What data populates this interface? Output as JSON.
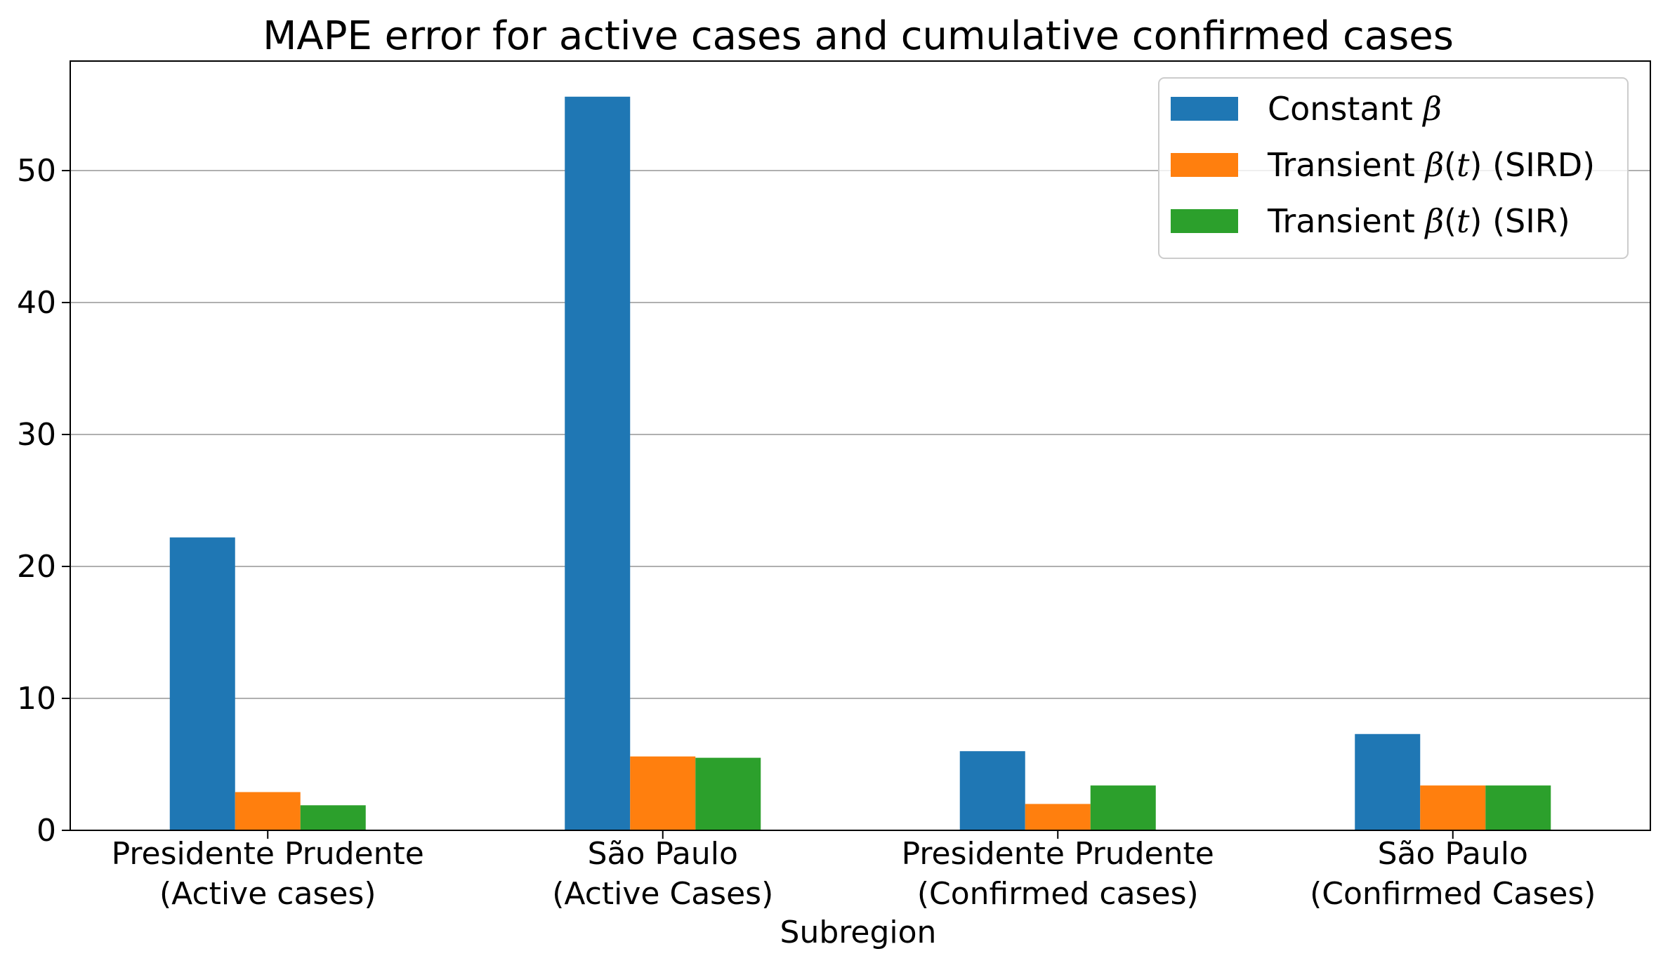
{
  "chart_data": {
    "type": "bar",
    "title": "MAPE error for active cases and cumulative confirmed cases",
    "xlabel": "Subregion",
    "ylabel": "",
    "ylim": [
      0,
      58.3
    ],
    "yticks": [
      0,
      10,
      20,
      30,
      40,
      50
    ],
    "grid": "horizontal",
    "legend_position": "top-right",
    "categories": [
      [
        "Presidente Prudente",
        "(Active cases)"
      ],
      [
        "São Paulo",
        "(Active Cases)"
      ],
      [
        "Presidente Prudente",
        "(Confirmed cases)"
      ],
      [
        "São Paulo",
        "(Confirmed Cases)"
      ]
    ],
    "series": [
      {
        "name": "Constant β",
        "legend_parts": [
          {
            "t": "Constant "
          },
          {
            "t": "β",
            "math": true
          }
        ],
        "color": "#1f77b4",
        "values": [
          22.2,
          55.6,
          6.0,
          7.3
        ]
      },
      {
        "name": "Transient β(t) (SIRD)",
        "legend_parts": [
          {
            "t": "Transient "
          },
          {
            "t": "β",
            "math": true
          },
          {
            "t": "("
          },
          {
            "t": "t",
            "math": true
          },
          {
            "t": ") (SIRD)"
          }
        ],
        "color": "#ff7f0e",
        "values": [
          2.9,
          5.6,
          2.0,
          3.4
        ]
      },
      {
        "name": "Transient β(t) (SIR)",
        "legend_parts": [
          {
            "t": "Transient "
          },
          {
            "t": "β",
            "math": true
          },
          {
            "t": "("
          },
          {
            "t": "t",
            "math": true
          },
          {
            "t": ") (SIR)"
          }
        ],
        "color": "#2ca02c",
        "values": [
          1.9,
          5.5,
          3.4,
          3.4
        ]
      }
    ]
  }
}
